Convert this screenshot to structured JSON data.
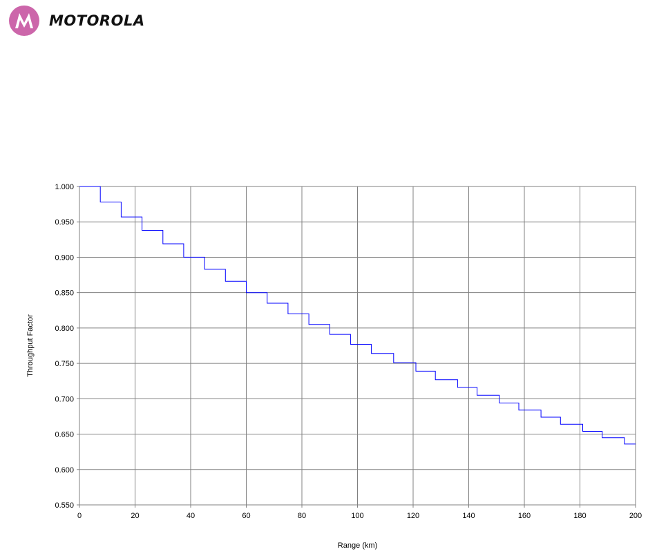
{
  "brand": {
    "name": "MOTOROLA",
    "logo_icon": "motorola-batwing-icon",
    "color": "#CC66AA"
  },
  "chart_data": {
    "type": "line",
    "title": "",
    "xlabel": "Range (km)",
    "ylabel": "Throughput Factor",
    "xlim": [
      0,
      200
    ],
    "ylim": [
      0.55,
      1.0
    ],
    "x_ticks": [
      "0",
      "20",
      "40",
      "60",
      "80",
      "100",
      "120",
      "140",
      "160",
      "180",
      "200"
    ],
    "y_ticks": [
      "1.000",
      "0.950",
      "0.900",
      "0.850",
      "0.800",
      "0.750",
      "0.700",
      "0.650",
      "0.600",
      "0.550"
    ],
    "grid": true,
    "line_color": "#0000FF",
    "step": true,
    "series": [
      {
        "x": [
          0,
          7.5,
          15,
          22.5,
          30,
          37.5,
          45,
          52.5,
          60,
          67.5,
          75,
          82.5,
          90,
          97.5,
          105,
          113,
          121,
          128,
          136,
          143,
          151,
          158,
          166,
          173,
          181,
          188,
          196,
          200
        ],
        "y": [
          1.0,
          0.978,
          0.957,
          0.938,
          0.919,
          0.9,
          0.883,
          0.866,
          0.85,
          0.835,
          0.82,
          0.805,
          0.791,
          0.777,
          0.764,
          0.751,
          0.739,
          0.727,
          0.716,
          0.705,
          0.694,
          0.684,
          0.674,
          0.664,
          0.654,
          0.645,
          0.636,
          0.636
        ]
      }
    ]
  }
}
